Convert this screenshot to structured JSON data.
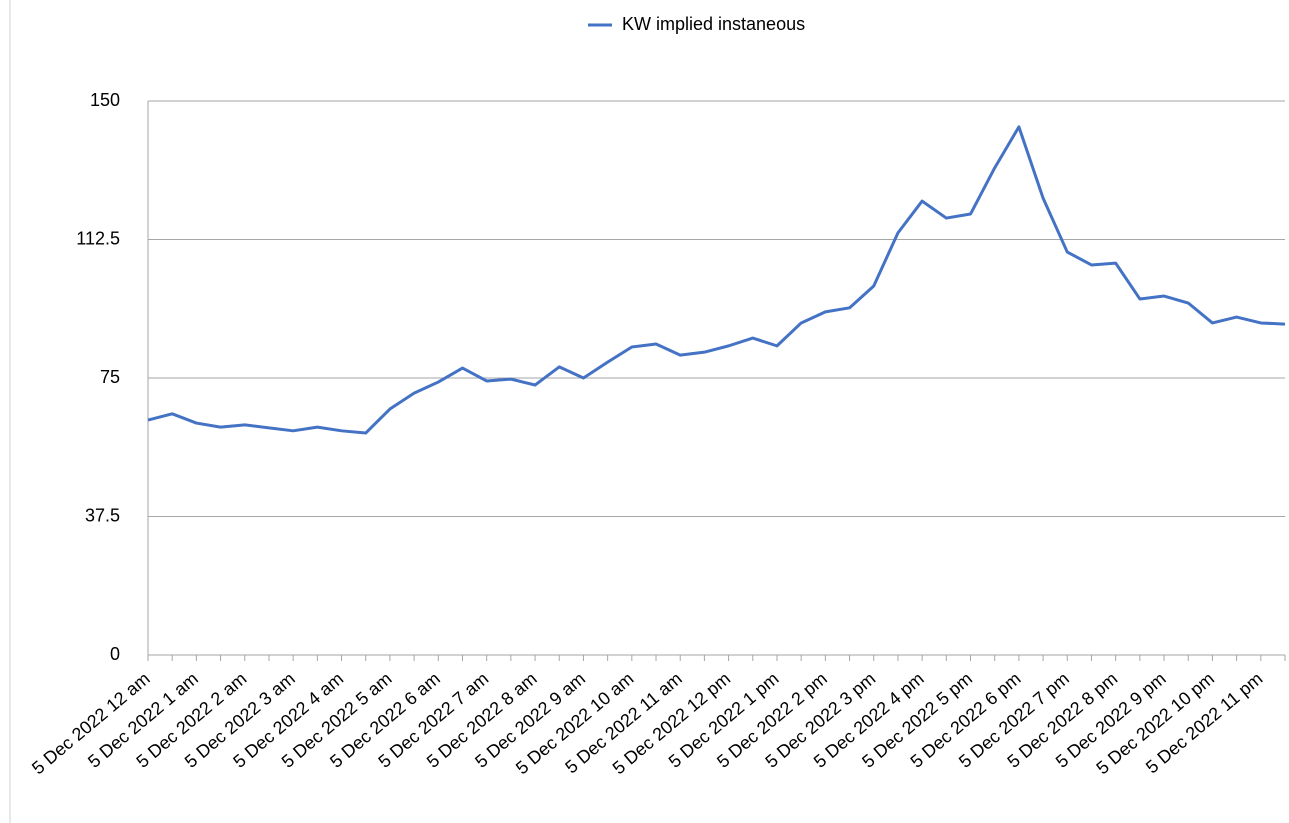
{
  "chart_data": {
    "type": "line",
    "categories": [
      "5 Dec 2022 12 am",
      null,
      "5 Dec 2022 1 am",
      null,
      "5 Dec 2022 2 am",
      null,
      "5 Dec 2022 3 am",
      null,
      "5 Dec 2022 4 am",
      null,
      "5 Dec 2022 5 am",
      null,
      "5 Dec 2022 6 am",
      null,
      "5 Dec 2022 7 am",
      null,
      "5 Dec 2022 8 am",
      null,
      "5 Dec 2022 9 am",
      null,
      "5 Dec 2022 10 am",
      null,
      "5 Dec 2022 11 am",
      null,
      "5 Dec 2022 12 pm",
      null,
      "5 Dec 2022 1 pm",
      null,
      "5 Dec 2022 2 pm",
      null,
      "5 Dec 2022 3 pm",
      null,
      "5 Dec 2022 4 pm",
      null,
      "5 Dec 2022 5 pm",
      null,
      "5 Dec 2022 6 pm",
      null,
      "5 Dec 2022 7 pm",
      null,
      "5 Dec 2022 8 pm",
      null,
      "5 Dec 2022 9 pm",
      null,
      "5 Dec 2022 10 pm",
      null,
      "5 Dec 2022 11 pm",
      null
    ],
    "series": [
      {
        "name": "KW implied instaneous",
        "color": "#4472c4",
        "values": [
          63.6,
          65.3,
          62.8,
          61.7,
          62.3,
          61.5,
          60.7,
          61.7,
          60.7,
          60.1,
          66.6,
          70.9,
          73.9,
          77.7,
          74.2,
          74.7,
          73.1,
          78.0,
          75.0,
          79.3,
          83.4,
          84.2,
          81.2,
          82.0,
          83.7,
          85.8,
          83.7,
          89.9,
          92.9,
          94.0,
          99.9,
          114.3,
          122.9,
          118.3,
          119.4,
          131.9,
          143.0,
          123.7,
          109.1,
          105.6,
          106.1,
          96.4,
          97.2,
          95.3,
          89.9,
          91.5,
          89.9,
          89.6
        ]
      }
    ],
    "ylim": [
      0,
      150
    ],
    "yticks": [
      0,
      37.5,
      75,
      112.5,
      150
    ],
    "grid": true,
    "legend": "top"
  }
}
